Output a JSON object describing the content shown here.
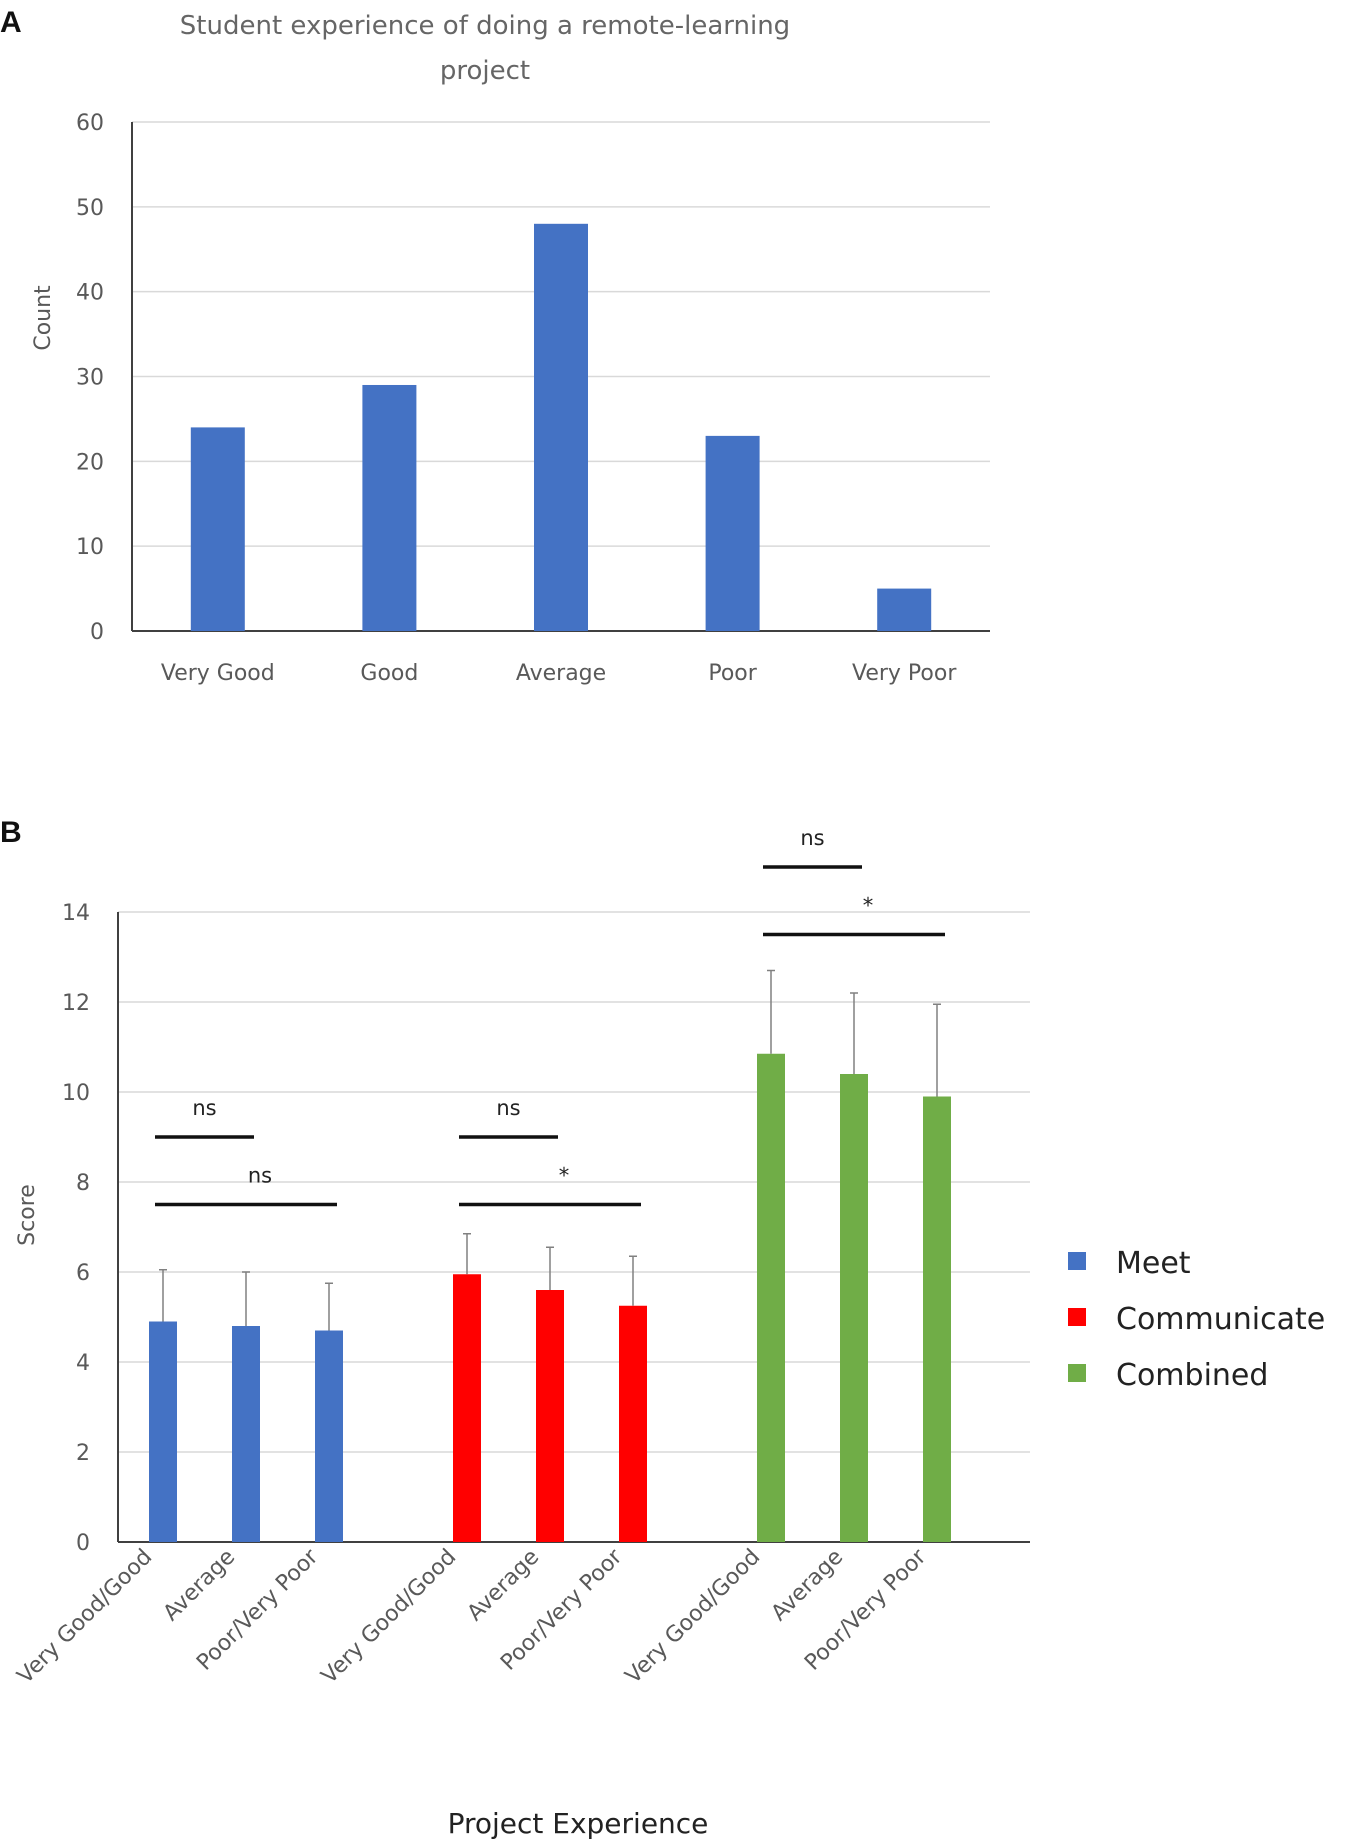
{
  "chart_data": [
    {
      "panel": "A",
      "type": "bar",
      "title_lines": [
        "Student experience of doing a remote-learning",
        "project"
      ],
      "ylabel": "Count",
      "xlabel": "",
      "ylim": [
        0,
        60
      ],
      "yticks": [
        0,
        10,
        20,
        30,
        40,
        50,
        60
      ],
      "categories": [
        "Very Good",
        "Good",
        "Average",
        "Poor",
        "Very Poor"
      ],
      "values": [
        24,
        29,
        48,
        23,
        5
      ],
      "color": "#4472C4",
      "grid": true
    },
    {
      "panel": "B",
      "type": "bar",
      "ylabel": "Score",
      "xlabel": "Project Experience",
      "ylim": [
        0,
        14
      ],
      "yticks": [
        0,
        2,
        4,
        6,
        8,
        10,
        12,
        14
      ],
      "categories": [
        "Very Good/Good",
        "Average",
        "Poor/Very Poor"
      ],
      "series": [
        {
          "name": "Meet",
          "color": "#4472C4",
          "values": [
            4.9,
            4.8,
            4.7
          ],
          "errors": [
            1.15,
            1.2,
            1.05
          ]
        },
        {
          "name": "Communicate",
          "color": "#FF0000",
          "values": [
            5.95,
            5.6,
            5.25
          ],
          "errors": [
            0.9,
            0.95,
            1.1
          ]
        },
        {
          "name": "Combined",
          "color": "#70AD47",
          "values": [
            10.85,
            10.4,
            9.9
          ],
          "errors": [
            1.85,
            1.8,
            2.05
          ]
        }
      ],
      "significance": [
        {
          "series": "Meet",
          "from": 0,
          "to": 1,
          "y": 9.0,
          "label": "ns"
        },
        {
          "series": "Meet",
          "from": 0,
          "to": 2,
          "y": 7.5,
          "label": "ns"
        },
        {
          "series": "Communicate",
          "from": 0,
          "to": 1,
          "y": 9.0,
          "label": "ns"
        },
        {
          "series": "Communicate",
          "from": 0,
          "to": 2,
          "y": 7.5,
          "label": "*"
        },
        {
          "series": "Combined",
          "from": 0,
          "to": 1,
          "y": 15.0,
          "label": "ns"
        },
        {
          "series": "Combined",
          "from": 0,
          "to": 2,
          "y": 13.5,
          "label": "*"
        }
      ],
      "legend_position": "right",
      "grid": true
    }
  ]
}
